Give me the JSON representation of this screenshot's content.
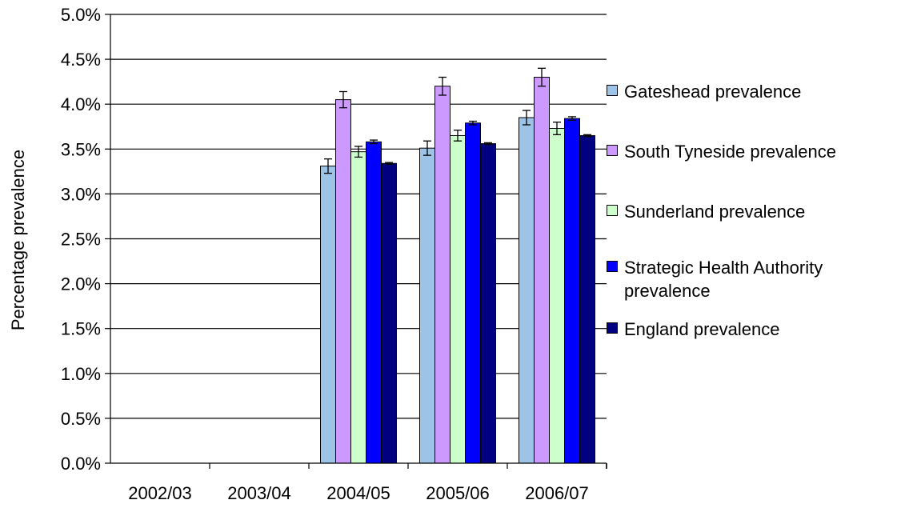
{
  "chart_data": {
    "type": "bar",
    "title": "",
    "xlabel": "",
    "ylabel": "Percentage prevalence",
    "ylim": [
      0,
      0.05
    ],
    "y_ticks": [
      "0.0%",
      "0.5%",
      "1.0%",
      "1.5%",
      "2.0%",
      "2.5%",
      "3.0%",
      "3.5%",
      "4.0%",
      "4.5%",
      "5.0%"
    ],
    "grid": "horizontal",
    "legend_position": "right",
    "categories": [
      "2002/03",
      "2003/04",
      "2004/05",
      "2005/06",
      "2006/07"
    ],
    "series": [
      {
        "name": "Gateshead prevalence",
        "color": "#9DC3E6",
        "values": [
          0,
          0,
          0.0331,
          0.0351,
          0.0385
        ],
        "error": [
          0,
          0,
          0.0008,
          0.0008,
          0.0008
        ]
      },
      {
        "name": "South Tyneside prevalence",
        "color": "#CC99FF",
        "values": [
          0,
          0,
          0.0405,
          0.042,
          0.043
        ],
        "error": [
          0,
          0,
          0.0009,
          0.001,
          0.001
        ]
      },
      {
        "name": "Sunderland prevalence",
        "color": "#CCFFCC",
        "values": [
          0,
          0,
          0.0347,
          0.0365,
          0.0373
        ],
        "error": [
          0,
          0,
          0.0006,
          0.0006,
          0.0007
        ]
      },
      {
        "name": "Strategic Health Authority prevalence",
        "color": "#0000FF",
        "values": [
          0,
          0,
          0.0358,
          0.0379,
          0.0384
        ],
        "error": [
          0,
          0,
          0.0002,
          0.0002,
          0.0002
        ]
      },
      {
        "name": "England prevalence",
        "color": "#000080",
        "values": [
          0,
          0,
          0.0334,
          0.0356,
          0.0365
        ],
        "error": [
          0,
          0,
          0.0001,
          0.0001,
          0.0001
        ]
      }
    ]
  }
}
